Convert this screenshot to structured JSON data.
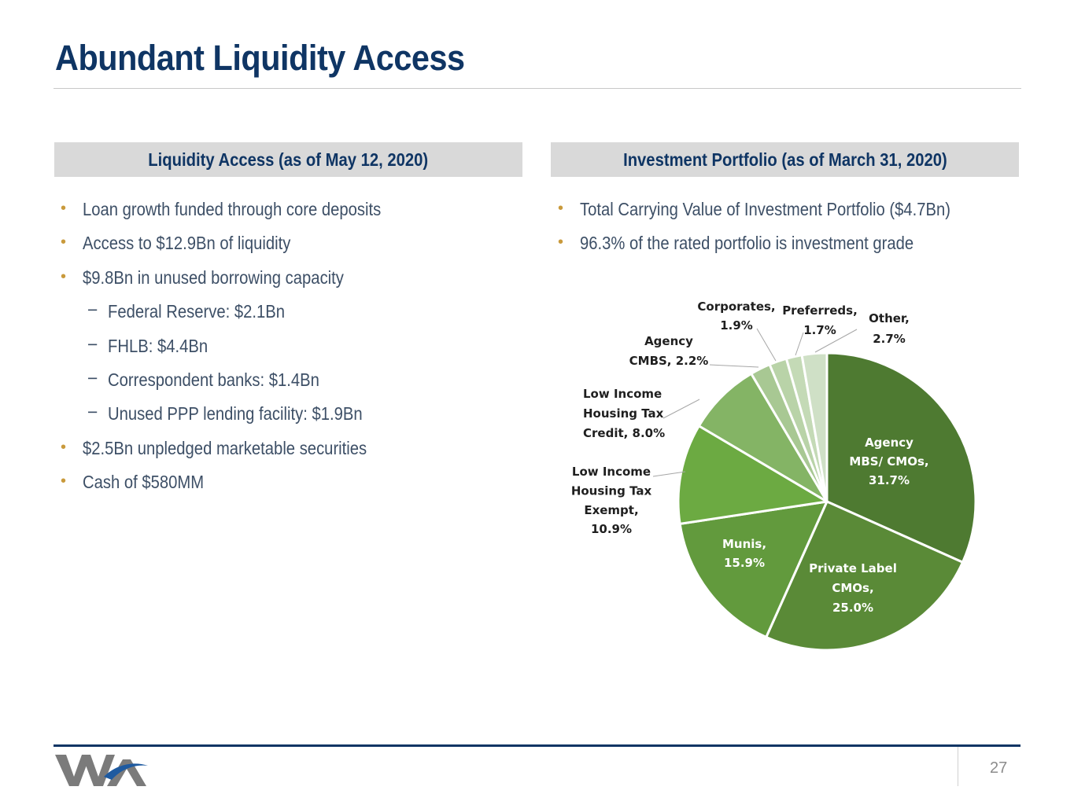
{
  "title": "Abundant Liquidity Access",
  "left": {
    "heading": "Liquidity Access (as of May 12, 2020)",
    "bullets": [
      "Loan growth funded through core deposits",
      "Access to $12.9Bn of liquidity",
      "$9.8Bn in unused borrowing capacity",
      "Federal Reserve: $2.1Bn",
      "FHLB: $4.4Bn",
      "Correspondent banks: $1.4Bn",
      "Unused PPP lending facility: $1.9Bn",
      "$2.5Bn unpledged marketable securities",
      "Cash of $580MM"
    ]
  },
  "right": {
    "heading": "Investment Portfolio (as of March 31, 2020)",
    "bullets": [
      "Total Carrying Value of Investment Portfolio ($4.7Bn)",
      "96.3% of the rated portfolio is investment grade"
    ]
  },
  "chart_data": {
    "type": "pie",
    "unit": "%",
    "slices": [
      {
        "label": "Agency MBS/ CMOs",
        "value": 31.7,
        "display": "31.7%",
        "color": "#4e7a31"
      },
      {
        "label": "Private Label CMOs",
        "value": 25.0,
        "display": "25.0%",
        "color": "#5a8a37"
      },
      {
        "label": "Munis",
        "value": 15.9,
        "display": "15.9%",
        "color": "#629a3d"
      },
      {
        "label": "Low Income Housing Tax Exempt",
        "value": 10.9,
        "display": "10.9%",
        "color": "#6caa42"
      },
      {
        "label": "Low Income Housing Tax Credit",
        "value": 8.0,
        "display": "8.0%",
        "color": "#84b465"
      },
      {
        "label": "Agency CMBS",
        "value": 2.2,
        "display": "2.2%",
        "color": "#a8c893"
      },
      {
        "label": "Corporates",
        "value": 1.9,
        "display": "1.9%",
        "color": "#b9d3a8"
      },
      {
        "label": "Preferreds",
        "value": 1.7,
        "display": "1.7%",
        "color": "#c4dab6"
      },
      {
        "label": "Other",
        "value": 2.7,
        "display": "2.7%",
        "color": "#cfe0c6"
      }
    ]
  },
  "colors": {
    "brand_navy": "#0f3564",
    "header_bar": "#d9d9d9",
    "bullet_gold": "#c99a3c",
    "body_text": "#3d4f66"
  },
  "footer": {
    "page_number": "27",
    "logo": "WA"
  }
}
